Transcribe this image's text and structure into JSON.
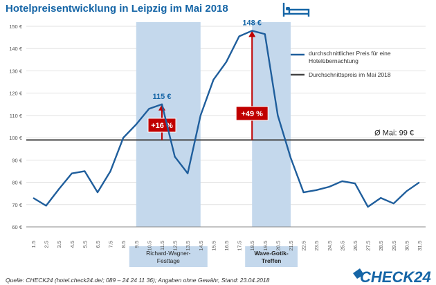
{
  "title": "Hotelpreisentwicklung in Leipzig im Mai 2018",
  "source": "Quelle: CHECK24 (hotel.check24.de/; 089 – 24 24 11 36); Angaben ohne Gewähr, Stand: 23.04.2018",
  "logo": "CHECK24",
  "colors": {
    "line": "#1f5e9c",
    "avg": "#444444",
    "shade": "#c4d8ec",
    "box": "#c00000",
    "accent": "#1565a6"
  },
  "icon": "bed-icon",
  "chart_data": {
    "type": "line",
    "x": [
      "1.5",
      "2.5",
      "3.5",
      "4.5",
      "5.5",
      "6.5",
      "7.5",
      "8.5",
      "9.5",
      "10.5",
      "11.5",
      "12.5",
      "13.5",
      "14.5",
      "15.5",
      "16.5",
      "17.5",
      "18.5",
      "19.5",
      "20.5",
      "21.5",
      "22.5",
      "23.5",
      "24.5",
      "25.5",
      "26.5",
      "27.5",
      "28.5",
      "29.5",
      "30.5",
      "31.5"
    ],
    "ylim": [
      60,
      150
    ],
    "yticks": [
      "60 €",
      "70 €",
      "80 €",
      "90 €",
      "100 €",
      "110 €",
      "120 €",
      "130 €",
      "140 €",
      "150 €"
    ],
    "series": [
      {
        "name": "durchschnittlicher Preis für eine Hotelübernachtung",
        "values": [
          73,
          69.5,
          77,
          84,
          85,
          75.5,
          85,
          100,
          106,
          113,
          115,
          91.5,
          84,
          110,
          126,
          134,
          145.5,
          148,
          146.5,
          110,
          91,
          75.5,
          76.5,
          78,
          80.5,
          79.5,
          69,
          73,
          70.5,
          76,
          80
        ]
      },
      {
        "name": "Durchschnittspreis im Mai 2018",
        "constant": 99
      }
    ],
    "avg_label": "Ø Mai: 99 €",
    "annotations": [
      {
        "label": "115 €",
        "x": "11.5",
        "value": 115,
        "change": "+16 %"
      },
      {
        "label": "148 €",
        "x": "18.5",
        "value": 148,
        "change": "+49 %"
      }
    ],
    "events": [
      {
        "name": "Richard-Wagner-Festtage",
        "lines": [
          "Richard-Wagner-",
          "Festtage"
        ],
        "from": "9.5",
        "to": "14.5"
      },
      {
        "name": "Wave-Gotik-Treffen",
        "lines": [
          "Wave-Gotik-",
          "Treffen"
        ],
        "from": "18.5",
        "to": "21.5"
      }
    ]
  }
}
